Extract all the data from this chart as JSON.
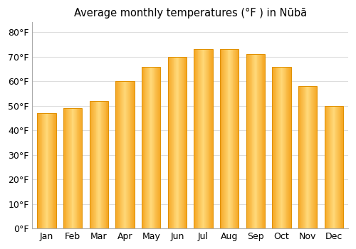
{
  "months": [
    "Jan",
    "Feb",
    "Mar",
    "Apr",
    "May",
    "Jun",
    "Jul",
    "Aug",
    "Sep",
    "Oct",
    "Nov",
    "Dec"
  ],
  "values": [
    47,
    49,
    52,
    60,
    66,
    70,
    73,
    73,
    71,
    66,
    58,
    50
  ],
  "title": "Average monthly temperatures (°F ) in Nūbā",
  "ylabel_ticks": [
    "0°F",
    "10°F",
    "20°F",
    "30°F",
    "40°F",
    "50°F",
    "60°F",
    "70°F",
    "80°F"
  ],
  "yticks": [
    0,
    10,
    20,
    30,
    40,
    50,
    60,
    70,
    80
  ],
  "ylim": [
    0,
    84
  ],
  "bar_left_color": "#F5A623",
  "bar_mid_color": "#FFD97A",
  "bar_right_color": "#F5A623",
  "bar_edge_color": "#E09000",
  "background_color": "#ffffff",
  "grid_color": "#dddddd",
  "title_fontsize": 10.5,
  "tick_fontsize": 9,
  "bar_width": 0.72
}
